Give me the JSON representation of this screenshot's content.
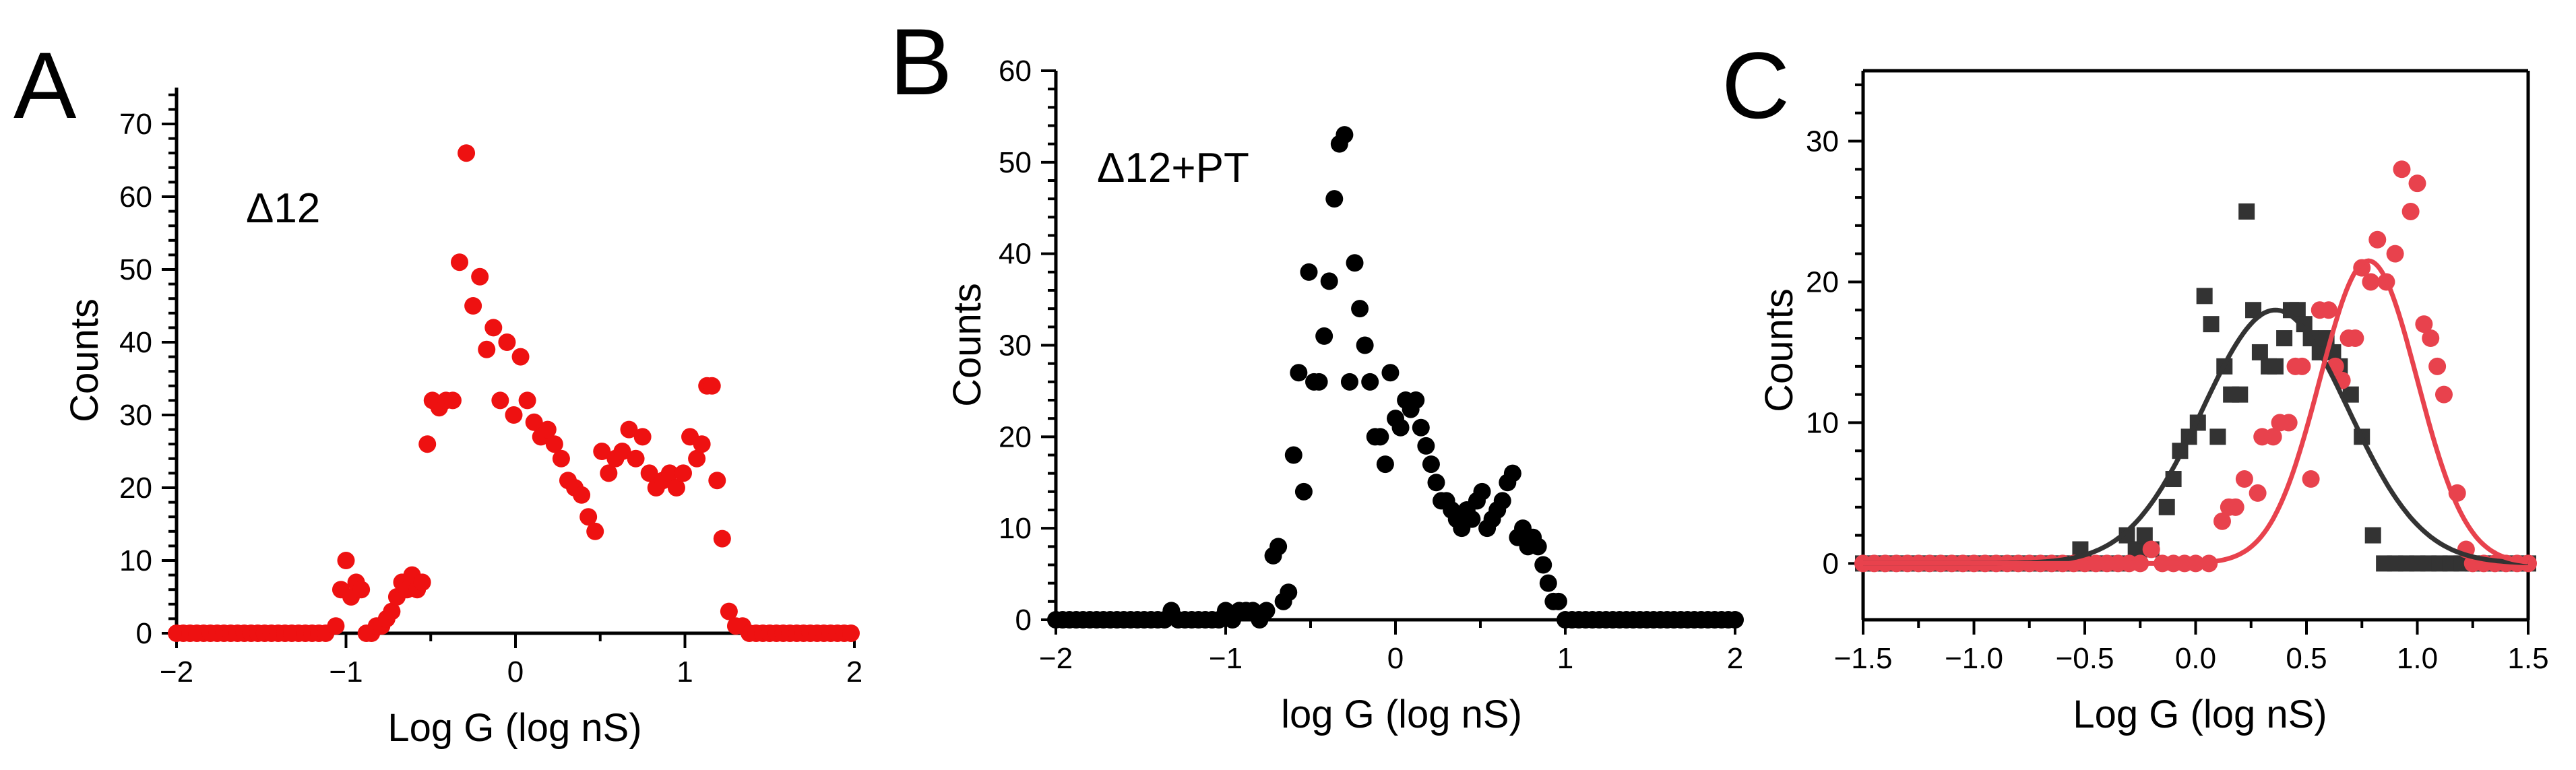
{
  "chart_data": [
    {
      "panel": "A",
      "type": "scatter",
      "annotation": "Δ12",
      "xlabel": "Log G (log nS)",
      "ylabel": "Counts",
      "xlim": [
        -2,
        2
      ],
      "ylim": [
        0,
        75
      ],
      "xticks": [
        -2,
        -1,
        0,
        1,
        2
      ],
      "yticks": [
        0,
        10,
        20,
        30,
        40,
        50,
        60,
        70
      ],
      "tick_labels_x": [
        "−2",
        "−1",
        "0",
        "1",
        "2"
      ],
      "tick_labels_y": [
        "0",
        "10",
        "20",
        "30",
        "40",
        "50",
        "60",
        "70"
      ],
      "color": "#ee1111",
      "marker": "circle",
      "x": [
        -2.0,
        -1.96,
        -1.92,
        -1.88,
        -1.84,
        -1.8,
        -1.76,
        -1.72,
        -1.68,
        -1.64,
        -1.6,
        -1.56,
        -1.52,
        -1.48,
        -1.44,
        -1.4,
        -1.36,
        -1.32,
        -1.28,
        -1.24,
        -1.2,
        -1.16,
        -1.12,
        -1.06,
        -1.03,
        -1.0,
        -0.97,
        -0.94,
        -0.91,
        -0.88,
        -0.85,
        -0.82,
        -0.79,
        -0.76,
        -0.73,
        -0.7,
        -0.67,
        -0.64,
        -0.61,
        -0.58,
        -0.55,
        -0.52,
        -0.49,
        -0.45,
        -0.41,
        -0.37,
        -0.33,
        -0.29,
        -0.25,
        -0.21,
        -0.17,
        -0.13,
        -0.09,
        -0.05,
        -0.01,
        0.03,
        0.07,
        0.11,
        0.15,
        0.19,
        0.23,
        0.27,
        0.31,
        0.35,
        0.39,
        0.43,
        0.47,
        0.51,
        0.55,
        0.59,
        0.63,
        0.67,
        0.71,
        0.75,
        0.79,
        0.83,
        0.87,
        0.91,
        0.95,
        0.99,
        1.03,
        1.07,
        1.1,
        1.13,
        1.16,
        1.19,
        1.22,
        1.26,
        1.3,
        1.34,
        1.38,
        1.42,
        1.46,
        1.5,
        1.54,
        1.58,
        1.62,
        1.66,
        1.7,
        1.74,
        1.78,
        1.82,
        1.86,
        1.9,
        1.94,
        1.98
      ],
      "y": [
        0,
        0,
        0,
        0,
        0,
        0,
        0,
        0,
        0,
        0,
        0,
        0,
        0,
        0,
        0,
        0,
        0,
        0,
        0,
        0,
        0,
        0,
        0,
        1,
        6,
        10,
        5,
        7,
        6,
        0,
        0,
        1,
        1,
        2,
        3,
        5,
        7,
        6,
        8,
        6,
        7,
        26,
        32,
        31,
        32,
        32,
        51,
        66,
        45,
        49,
        39,
        42,
        32,
        40,
        30,
        38,
        32,
        29,
        27,
        28,
        26,
        24,
        21,
        20,
        19,
        16,
        14,
        25,
        22,
        24,
        25,
        28,
        24,
        27,
        22,
        20,
        21,
        22,
        20,
        22,
        27,
        24,
        26,
        34,
        34,
        21,
        13,
        3,
        1,
        1,
        0,
        0,
        0,
        0,
        0,
        0,
        0,
        0,
        0,
        0,
        0,
        0,
        0,
        0,
        0,
        0
      ]
    },
    {
      "panel": "B",
      "type": "scatter",
      "annotation": "Δ12+PT",
      "xlabel": "log G (log nS)",
      "ylabel": "Counts",
      "xlim": [
        -2,
        2
      ],
      "ylim": [
        0,
        60
      ],
      "xticks": [
        -2,
        -1,
        0,
        1,
        2
      ],
      "yticks": [
        0,
        10,
        20,
        30,
        40,
        50,
        60
      ],
      "tick_labels_x": [
        "−2",
        "−1",
        "0",
        "1",
        "2"
      ],
      "tick_labels_y": [
        "0",
        "10",
        "20",
        "30",
        "40",
        "50",
        "60"
      ],
      "color": "#000000",
      "marker": "circle",
      "x": [
        -2.0,
        -1.96,
        -1.92,
        -1.88,
        -1.84,
        -1.8,
        -1.76,
        -1.72,
        -1.68,
        -1.64,
        -1.6,
        -1.56,
        -1.52,
        -1.48,
        -1.44,
        -1.4,
        -1.36,
        -1.32,
        -1.28,
        -1.24,
        -1.2,
        -1.16,
        -1.12,
        -1.08,
        -1.04,
        -1.0,
        -0.96,
        -0.92,
        -0.88,
        -0.84,
        -0.8,
        -0.76,
        -0.72,
        -0.69,
        -0.66,
        -0.63,
        -0.6,
        -0.57,
        -0.54,
        -0.51,
        -0.48,
        -0.45,
        -0.42,
        -0.39,
        -0.36,
        -0.33,
        -0.3,
        -0.27,
        -0.24,
        -0.21,
        -0.18,
        -0.15,
        -0.12,
        -0.09,
        -0.06,
        -0.03,
        0.0,
        0.03,
        0.06,
        0.09,
        0.12,
        0.15,
        0.18,
        0.21,
        0.24,
        0.27,
        0.3,
        0.33,
        0.36,
        0.39,
        0.42,
        0.45,
        0.48,
        0.51,
        0.54,
        0.57,
        0.6,
        0.63,
        0.66,
        0.69,
        0.72,
        0.75,
        0.78,
        0.81,
        0.84,
        0.87,
        0.9,
        0.93,
        0.96,
        1.0,
        1.04,
        1.08,
        1.12,
        1.16,
        1.2,
        1.24,
        1.28,
        1.32,
        1.36,
        1.4,
        1.44,
        1.48,
        1.52,
        1.56,
        1.6,
        1.64,
        1.68,
        1.72,
        1.76,
        1.8,
        1.84,
        1.88,
        1.92,
        1.96,
        2.0
      ],
      "y": [
        0,
        0,
        0,
        0,
        0,
        0,
        0,
        0,
        0,
        0,
        0,
        0,
        0,
        0,
        0,
        0,
        0,
        1,
        0,
        0,
        0,
        0,
        0,
        0,
        0,
        1,
        0,
        1,
        1,
        1,
        0,
        1,
        7,
        8,
        2,
        3,
        18,
        27,
        14,
        38,
        26,
        26,
        31,
        37,
        46,
        52,
        53,
        26,
        39,
        34,
        30,
        26,
        20,
        20,
        17,
        27,
        22,
        21,
        24,
        23,
        24,
        21,
        19,
        17,
        15,
        13,
        13,
        12,
        11,
        10,
        12,
        11,
        13,
        14,
        10,
        11,
        12,
        13,
        15,
        16,
        9,
        10,
        8,
        9,
        8,
        6,
        4,
        2,
        2,
        0,
        0,
        0,
        0,
        0,
        0,
        0,
        0,
        0,
        0,
        0,
        0,
        0,
        0,
        0,
        0,
        0,
        0,
        0,
        0,
        0,
        0,
        0,
        0,
        0,
        0
      ]
    },
    {
      "panel": "C",
      "type": "scatter",
      "xlabel": "Log G (log nS)",
      "ylabel": "Counts",
      "xlim": [
        -1.5,
        1.5
      ],
      "ylim": [
        -4,
        35
      ],
      "xticks": [
        -1.5,
        -1.0,
        -0.5,
        0.0,
        0.5,
        1.0,
        1.5
      ],
      "yticks": [
        0,
        10,
        20,
        30
      ],
      "tick_labels_x": [
        "−1.5",
        "−1.0",
        "−0.5",
        "0.0",
        "0.5",
        "1.0",
        "1.5"
      ],
      "tick_labels_y": [
        "0",
        "10",
        "20",
        "30"
      ],
      "series": [
        {
          "color": "#333333",
          "marker": "square",
          "x": [
            -1.5,
            -1.45,
            -1.4,
            -1.35,
            -1.3,
            -1.25,
            -1.2,
            -1.15,
            -1.1,
            -1.05,
            -1.0,
            -0.95,
            -0.9,
            -0.85,
            -0.8,
            -0.75,
            -0.7,
            -0.65,
            -0.6,
            -0.55,
            -0.52,
            -0.45,
            -0.4,
            -0.34,
            -0.31,
            -0.27,
            -0.23,
            -0.2,
            -0.13,
            -0.1,
            -0.07,
            -0.03,
            0.01,
            0.04,
            0.07,
            0.1,
            0.13,
            0.16,
            0.2,
            0.23,
            0.26,
            0.29,
            0.33,
            0.36,
            0.4,
            0.43,
            0.46,
            0.49,
            0.52,
            0.56,
            0.59,
            0.62,
            0.65,
            0.7,
            0.75,
            0.8,
            0.85,
            0.9,
            0.95,
            1.0,
            1.05,
            1.1,
            1.15,
            1.2,
            1.25,
            1.3,
            1.35,
            1.4,
            1.45,
            1.5
          ],
          "y": [
            0,
            0,
            0,
            0,
            0,
            0,
            0,
            0,
            0,
            0,
            0,
            0,
            0,
            0,
            0,
            0,
            0,
            0,
            0,
            0,
            1,
            0,
            0,
            0,
            2,
            1,
            2,
            1,
            4,
            6,
            8,
            9,
            10,
            19,
            17,
            9,
            14,
            12,
            12,
            25,
            18,
            15,
            14,
            14,
            16,
            18,
            18,
            17,
            16,
            15,
            16,
            15,
            14,
            12,
            9,
            2,
            0,
            0,
            0,
            0,
            0,
            0,
            0,
            0,
            0,
            0,
            0,
            0,
            0,
            0
          ]
        },
        {
          "color": "#e8424d",
          "marker": "circle",
          "x": [
            -1.5,
            -1.45,
            -1.4,
            -1.35,
            -1.3,
            -1.25,
            -1.2,
            -1.15,
            -1.1,
            -1.05,
            -1.0,
            -0.95,
            -0.9,
            -0.85,
            -0.8,
            -0.75,
            -0.7,
            -0.65,
            -0.6,
            -0.55,
            -0.5,
            -0.45,
            -0.4,
            -0.35,
            -0.3,
            -0.25,
            -0.2,
            -0.15,
            -0.1,
            -0.05,
            0.0,
            0.06,
            0.12,
            0.15,
            0.18,
            0.22,
            0.28,
            0.3,
            0.35,
            0.38,
            0.42,
            0.45,
            0.48,
            0.52,
            0.56,
            0.6,
            0.63,
            0.66,
            0.69,
            0.72,
            0.75,
            0.79,
            0.82,
            0.86,
            0.9,
            0.93,
            0.97,
            1.0,
            1.03,
            1.06,
            1.09,
            1.12,
            1.18,
            1.22,
            1.25,
            1.3,
            1.35,
            1.4,
            1.45,
            1.5
          ],
          "y": [
            0,
            0,
            0,
            0,
            0,
            0,
            0,
            0,
            0,
            0,
            0,
            0,
            0,
            0,
            0,
            0,
            0,
            0,
            0,
            0,
            0,
            0,
            0,
            0,
            0,
            0,
            1,
            0,
            0,
            0,
            0,
            0,
            3,
            4,
            4,
            6,
            5,
            9,
            9,
            10,
            10,
            14,
            14,
            6,
            18,
            18,
            14,
            13,
            16,
            16,
            21,
            20,
            23,
            20,
            22,
            28,
            25,
            27,
            17,
            16,
            14,
            12,
            5,
            1,
            0,
            0,
            0,
            0,
            0,
            0
          ]
        }
      ],
      "fits": [
        {
          "color": "#333333",
          "type": "gaussian",
          "amplitude": 18.0,
          "center": 0.36,
          "sigma": 0.33
        },
        {
          "color": "#e8424d",
          "type": "gaussian",
          "amplitude": 21.5,
          "center": 0.78,
          "sigma": 0.22
        }
      ]
    }
  ],
  "panel_labels": [
    "A",
    "B",
    "C"
  ]
}
